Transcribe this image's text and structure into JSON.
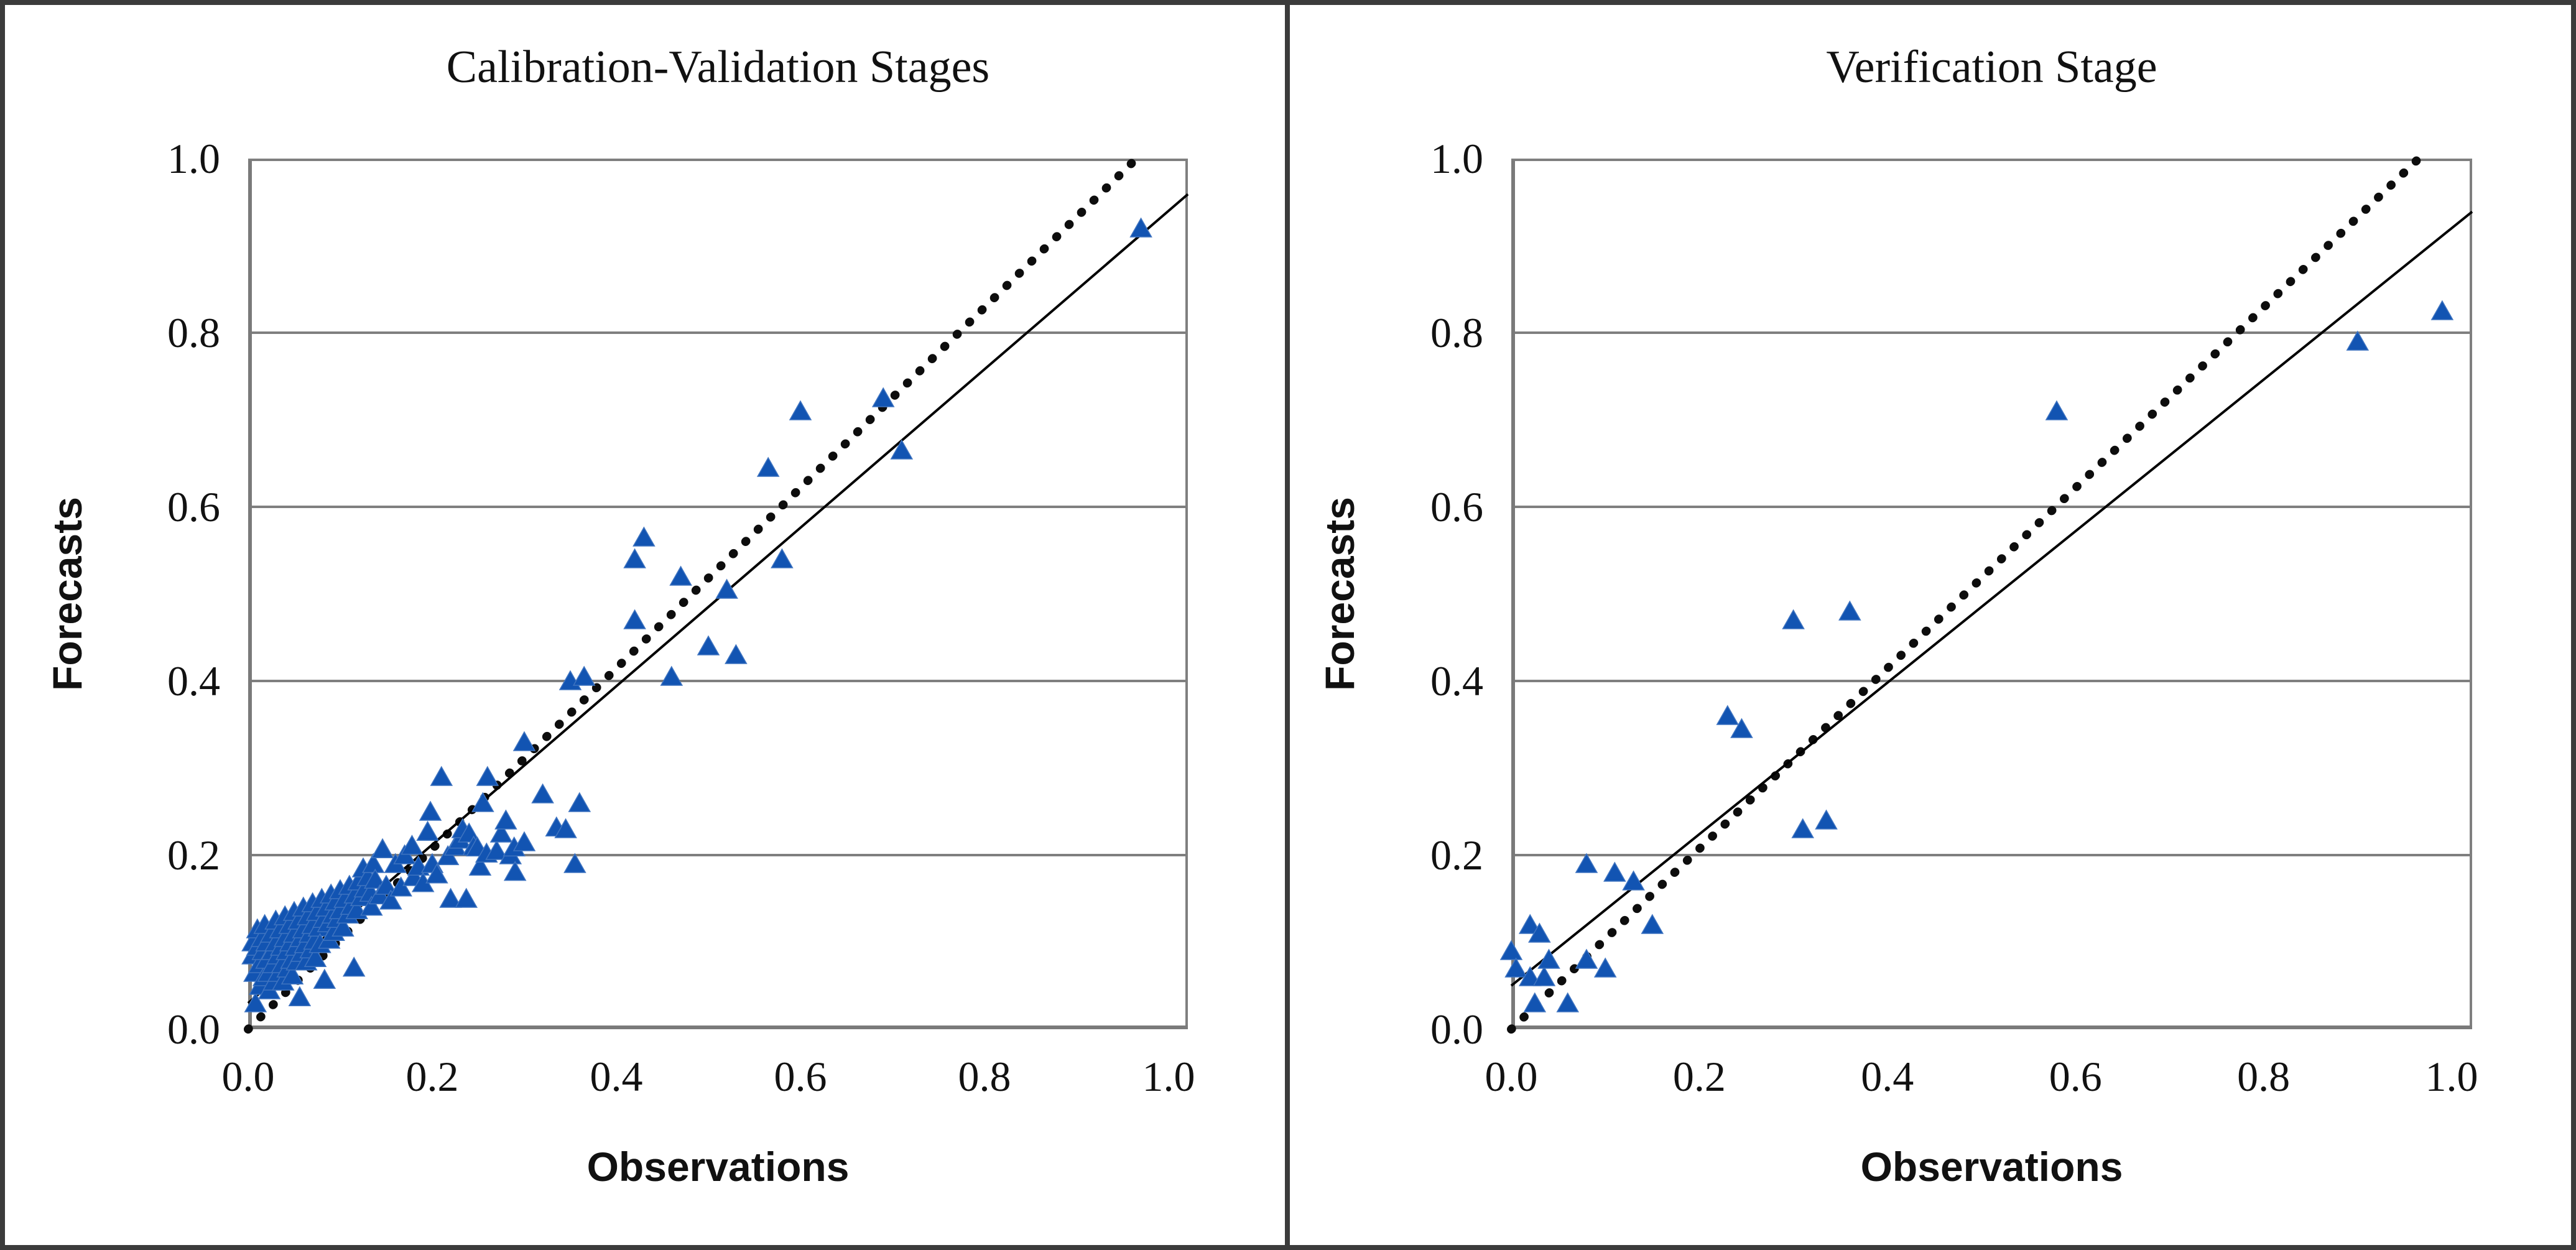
{
  "figure": {
    "type": "scatter-figure",
    "background": "#ffffff",
    "border_color": "#3b3b3b",
    "gridline_color": "#7f7f7f",
    "axis_line_color": "#7a7a7a",
    "marker_color": "#1254b2",
    "identity_line_color": "#0d0d0d",
    "regression_line_color": "#000000"
  },
  "chart_data": [
    {
      "type": "scatter",
      "title": "Calibration-Validation Stages",
      "xlabel": "Observations",
      "ylabel": "Forecasts",
      "xlim": [
        0.0,
        1.0
      ],
      "ylim": [
        0.0,
        1.0
      ],
      "xticks": [
        "0.0",
        "0.2",
        "0.4",
        "0.6",
        "0.8",
        "1.0"
      ],
      "yticks": [
        "1.0",
        "0.8",
        "0.6",
        "0.4",
        "0.2",
        "0.0"
      ],
      "grid": "horizontal",
      "legend": "none",
      "marker": "triangle",
      "identity_line": {
        "style": "dotted",
        "from": [
          0.0,
          0.0
        ],
        "to": [
          0.965,
          1.0
        ]
      },
      "regression_line": {
        "style": "solid",
        "from": [
          0.0,
          0.03
        ],
        "to": [
          1.0,
          0.94
        ]
      },
      "points": [
        [
          0.005,
          0.1
        ],
        [
          0.005,
          0.085
        ],
        [
          0.007,
          0.065
        ],
        [
          0.008,
          0.03
        ],
        [
          0.01,
          0.115
        ],
        [
          0.01,
          0.095
        ],
        [
          0.012,
          0.075
        ],
        [
          0.013,
          0.05
        ],
        [
          0.015,
          0.105
        ],
        [
          0.016,
          0.09
        ],
        [
          0.017,
          0.06
        ],
        [
          0.018,
          0.12
        ],
        [
          0.02,
          0.1
        ],
        [
          0.02,
          0.08
        ],
        [
          0.022,
          0.065
        ],
        [
          0.023,
          0.045
        ],
        [
          0.025,
          0.11
        ],
        [
          0.026,
          0.09
        ],
        [
          0.027,
          0.075
        ],
        [
          0.028,
          0.055
        ],
        [
          0.03,
          0.125
        ],
        [
          0.03,
          0.1
        ],
        [
          0.032,
          0.085
        ],
        [
          0.033,
          0.065
        ],
        [
          0.035,
          0.115
        ],
        [
          0.036,
          0.095
        ],
        [
          0.037,
          0.075
        ],
        [
          0.038,
          0.055
        ],
        [
          0.04,
          0.13
        ],
        [
          0.04,
          0.105
        ],
        [
          0.042,
          0.09
        ],
        [
          0.043,
          0.07
        ],
        [
          0.045,
          0.12
        ],
        [
          0.046,
          0.1
        ],
        [
          0.047,
          0.08
        ],
        [
          0.048,
          0.062
        ],
        [
          0.05,
          0.135
        ],
        [
          0.05,
          0.11
        ],
        [
          0.052,
          0.095
        ],
        [
          0.053,
          0.078
        ],
        [
          0.055,
          0.125
        ],
        [
          0.056,
          0.037
        ],
        [
          0.057,
          0.105
        ],
        [
          0.058,
          0.088
        ],
        [
          0.06,
          0.14
        ],
        [
          0.06,
          0.115
        ],
        [
          0.062,
          0.098
        ],
        [
          0.063,
          0.078
        ],
        [
          0.065,
          0.13
        ],
        [
          0.067,
          0.11
        ],
        [
          0.068,
          0.092
        ],
        [
          0.07,
          0.145
        ],
        [
          0.07,
          0.12
        ],
        [
          0.072,
          0.102
        ],
        [
          0.073,
          0.082
        ],
        [
          0.075,
          0.135
        ],
        [
          0.077,
          0.117
        ],
        [
          0.078,
          0.098
        ],
        [
          0.08,
          0.15
        ],
        [
          0.082,
          0.127
        ],
        [
          0.083,
          0.057
        ],
        [
          0.085,
          0.14
        ],
        [
          0.087,
          0.122
        ],
        [
          0.088,
          0.103
        ],
        [
          0.09,
          0.155
        ],
        [
          0.092,
          0.132
        ],
        [
          0.093,
          0.112
        ],
        [
          0.095,
          0.147
        ],
        [
          0.097,
          0.127
        ],
        [
          0.1,
          0.16
        ],
        [
          0.1,
          0.137
        ],
        [
          0.103,
          0.117
        ],
        [
          0.105,
          0.15
        ],
        [
          0.108,
          0.132
        ],
        [
          0.11,
          0.165
        ],
        [
          0.112,
          0.142
        ],
        [
          0.115,
          0.071
        ],
        [
          0.116,
          0.155
        ],
        [
          0.118,
          0.137
        ],
        [
          0.12,
          0.17
        ],
        [
          0.123,
          0.152
        ],
        [
          0.125,
          0.185
        ],
        [
          0.127,
          0.162
        ],
        [
          0.13,
          0.175
        ],
        [
          0.133,
          0.157
        ],
        [
          0.134,
          0.141
        ],
        [
          0.136,
          0.19
        ],
        [
          0.138,
          0.172
        ],
        [
          0.143,
          0.154
        ],
        [
          0.146,
          0.207
        ],
        [
          0.15,
          0.165
        ],
        [
          0.155,
          0.148
        ],
        [
          0.16,
          0.19
        ],
        [
          0.166,
          0.163
        ],
        [
          0.17,
          0.2
        ],
        [
          0.178,
          0.211
        ],
        [
          0.18,
          0.175
        ],
        [
          0.185,
          0.187
        ],
        [
          0.19,
          0.168
        ],
        [
          0.195,
          0.227
        ],
        [
          0.198,
          0.25
        ],
        [
          0.2,
          0.19
        ],
        [
          0.205,
          0.178
        ],
        [
          0.21,
          0.29
        ],
        [
          0.217,
          0.199
        ],
        [
          0.22,
          0.15
        ],
        [
          0.225,
          0.21
        ],
        [
          0.23,
          0.218
        ],
        [
          0.233,
          0.23
        ],
        [
          0.237,
          0.15
        ],
        [
          0.24,
          0.225
        ],
        [
          0.245,
          0.21
        ],
        [
          0.249,
          0.209
        ],
        [
          0.252,
          0.187
        ],
        [
          0.255,
          0.26
        ],
        [
          0.259,
          0.202
        ],
        [
          0.26,
          0.29
        ],
        [
          0.27,
          0.205
        ],
        [
          0.275,
          0.225
        ],
        [
          0.28,
          0.24
        ],
        [
          0.285,
          0.2
        ],
        [
          0.289,
          0.209
        ],
        [
          0.29,
          0.181
        ],
        [
          0.3,
          0.33
        ],
        [
          0.3,
          0.215
        ],
        [
          0.32,
          0.27
        ],
        [
          0.335,
          0.232
        ],
        [
          0.345,
          0.23
        ],
        [
          0.35,
          0.4
        ],
        [
          0.355,
          0.19
        ],
        [
          0.36,
          0.26
        ],
        [
          0.365,
          0.405
        ],
        [
          0.42,
          0.47
        ],
        [
          0.42,
          0.54
        ],
        [
          0.43,
          0.565
        ],
        [
          0.46,
          0.405
        ],
        [
          0.47,
          0.52
        ],
        [
          0.5,
          0.44
        ],
        [
          0.52,
          0.505
        ],
        [
          0.53,
          0.43
        ],
        [
          0.565,
          0.645
        ],
        [
          0.58,
          0.54
        ],
        [
          0.6,
          0.71
        ],
        [
          0.69,
          0.725
        ],
        [
          0.71,
          0.665
        ],
        [
          0.97,
          0.92
        ]
      ]
    },
    {
      "type": "scatter",
      "title": "Verification Stage",
      "xlabel": "Observations",
      "ylabel": "Forecasts",
      "xlim": [
        0.0,
        1.0
      ],
      "ylim": [
        0.0,
        1.0
      ],
      "xticks": [
        "0.0",
        "0.2",
        "0.4",
        "0.6",
        "0.8",
        "1.0"
      ],
      "yticks": [
        "1.0",
        "0.8",
        "0.6",
        "0.4",
        "0.2",
        "0.0"
      ],
      "grid": "horizontal",
      "legend": "none",
      "marker": "triangle",
      "identity_line": {
        "style": "dotted",
        "from": [
          0.0,
          0.0
        ],
        "to": [
          0.965,
          1.0
        ]
      },
      "regression_line": {
        "style": "solid",
        "from": [
          0.0,
          0.05
        ],
        "to": [
          1.0,
          0.92
        ]
      },
      "points": [
        [
          0.0,
          0.09
        ],
        [
          0.005,
          0.07
        ],
        [
          0.02,
          0.12
        ],
        [
          0.02,
          0.06
        ],
        [
          0.025,
          0.03
        ],
        [
          0.03,
          0.11
        ],
        [
          0.035,
          0.06
        ],
        [
          0.04,
          0.08
        ],
        [
          0.06,
          0.03
        ],
        [
          0.08,
          0.08
        ],
        [
          0.08,
          0.19
        ],
        [
          0.1,
          0.07
        ],
        [
          0.11,
          0.18
        ],
        [
          0.13,
          0.17
        ],
        [
          0.15,
          0.12
        ],
        [
          0.23,
          0.36
        ],
        [
          0.245,
          0.345
        ],
        [
          0.3,
          0.47
        ],
        [
          0.31,
          0.23
        ],
        [
          0.335,
          0.24
        ],
        [
          0.36,
          0.48
        ],
        [
          0.58,
          0.71
        ],
        [
          0.9,
          0.79
        ],
        [
          0.99,
          0.825
        ]
      ]
    }
  ]
}
